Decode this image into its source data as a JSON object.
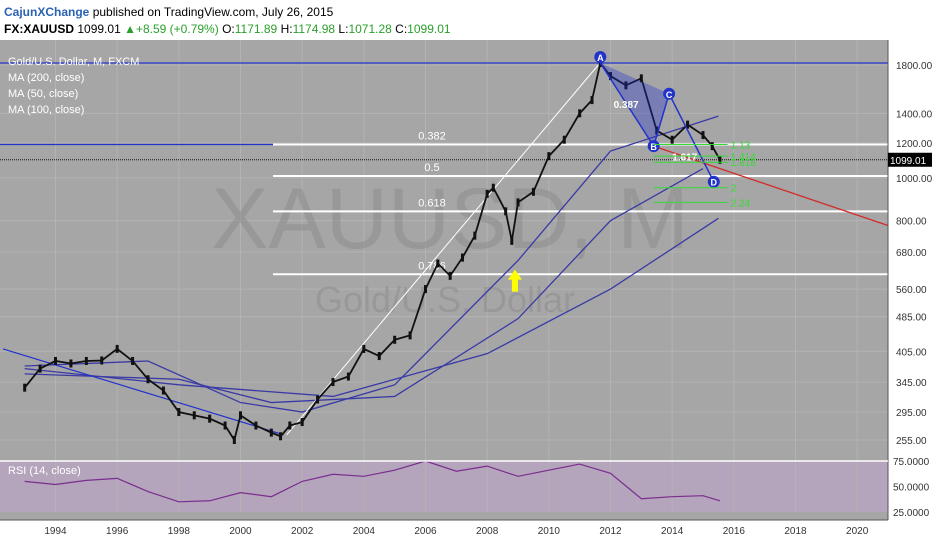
{
  "header": {
    "author": "CajunXChange",
    "published_text": "published on TradingView.com, July 26, 2015",
    "symbol": "FX:XAUUSD",
    "last": "1099.01",
    "change": "+8.59 (+0.79%)",
    "o_label": "O:",
    "o": "1171.89",
    "h_label": "H:",
    "h": "1174.98",
    "l_label": "L:",
    "l": "1071.28",
    "c_label": "C:",
    "c": "1099.01"
  },
  "legend": {
    "title": "Gold/U.S. Dollar, M, FXCM",
    "ma1": "MA (200, close)",
    "ma2": "MA (50, close)",
    "ma3": "MA (100, close)",
    "rsi": "RSI (14, close)"
  },
  "watermark": {
    "symbol": "XAUUSD, M",
    "name": "Gold/U.S. Dollar"
  },
  "colors": {
    "background": "#a6a6a6",
    "rsi_band": "#b4a4bc",
    "rsi_line": "#7b2d8e",
    "ma_line": "#3a3aa6",
    "fib_line": "#ffffff",
    "pattern_blue": "#2233cc",
    "target_green": "#33dd33",
    "trend_red": "#d22b2b",
    "arrow": "#ffff00",
    "price_badge_bg": "#000000"
  },
  "chart_data": {
    "type": "line",
    "title": "Gold/U.S. Dollar, M, FXCM",
    "log_scale": true,
    "grid": true,
    "price_axis_ticks": [
      "1800.00",
      "1400.00",
      "1200.00",
      "1000.00",
      "800.00",
      "680.00",
      "560.00",
      "485.00",
      "405.00",
      "345.00",
      "295.00",
      "255.00"
    ],
    "rsi_axis_ticks": [
      "75.0000",
      "50.0000",
      "25.0000"
    ],
    "x_axis_ticks": [
      "1994",
      "1996",
      "1998",
      "2000",
      "2002",
      "2004",
      "2006",
      "2008",
      "2010",
      "2012",
      "2014",
      "2016",
      "2018",
      "2020"
    ],
    "current_price": "1099.01",
    "series": [
      {
        "name": "Gold/U.S. Dollar",
        "x": [
          1993.0,
          1993.5,
          1994.0,
          1994.5,
          1995.0,
          1995.5,
          1996.0,
          1996.5,
          1997.0,
          1997.5,
          1998.0,
          1998.5,
          1999.0,
          1999.5,
          1999.8,
          2000.0,
          2000.5,
          2001.0,
          2001.3,
          2001.6,
          2002.0,
          2002.5,
          2003.0,
          2003.5,
          2004.0,
          2004.5,
          2005.0,
          2005.5,
          2006.0,
          2006.4,
          2006.8,
          2007.2,
          2007.6,
          2008.0,
          2008.2,
          2008.6,
          2008.8,
          2009.0,
          2009.5,
          2010.0,
          2010.5,
          2011.0,
          2011.4,
          2011.67,
          2012.0,
          2012.5,
          2013.0,
          2013.5,
          2014.0,
          2014.5,
          2015.0,
          2015.3,
          2015.55
        ],
        "y": [
          335,
          370,
          385,
          380,
          385,
          386,
          410,
          385,
          350,
          330,
          295,
          290,
          285,
          275,
          255,
          290,
          275,
          265,
          260,
          275,
          280,
          315,
          345,
          355,
          410,
          395,
          430,
          440,
          560,
          640,
          600,
          660,
          740,
          920,
          950,
          840,
          720,
          880,
          930,
          1120,
          1220,
          1400,
          1500,
          1820,
          1700,
          1620,
          1680,
          1280,
          1220,
          1320,
          1250,
          1180,
          1099
        ]
      }
    ],
    "fib_levels": [
      {
        "label": "0.382",
        "value": 1190
      },
      {
        "label": "0.5",
        "value": 1010
      },
      {
        "label": "0.618",
        "value": 840
      },
      {
        "label": "0.786",
        "value": 605
      }
    ],
    "pattern_points": [
      {
        "label": "A",
        "x": 2011.67,
        "y": 1820
      },
      {
        "label": "B",
        "x": 2013.4,
        "y": 1180
      },
      {
        "label": "C",
        "x": 2013.9,
        "y": 1550
      },
      {
        "label": "D",
        "x": 2015.35,
        "y": 980
      }
    ],
    "pattern_ratios": [
      "0.387",
      "1.617"
    ],
    "targets": [
      {
        "label": "1.13",
        "value": 1190
      },
      {
        "label": "1.414",
        "value": 1120
      },
      {
        "label": "1.618",
        "value": 1085
      },
      {
        "label": "2",
        "value": 950
      },
      {
        "label": "2.24",
        "value": 880
      }
    ],
    "ma": [
      {
        "name": "MA (200, close)",
        "x": [
          1993,
          1998,
          2003,
          2008,
          2012,
          2015.5
        ],
        "y": [
          370,
          340,
          320,
          400,
          560,
          810
        ]
      },
      {
        "name": "MA (50, close)",
        "x": [
          1993,
          1997,
          2000,
          2002,
          2005,
          2009,
          2012,
          2015.5
        ],
        "y": [
          375,
          385,
          310,
          295,
          340,
          650,
          1150,
          1380
        ]
      },
      {
        "name": "MA (100, close)",
        "x": [
          1993,
          1998,
          2001,
          2005,
          2009,
          2012,
          2015
        ],
        "y": [
          360,
          350,
          310,
          320,
          480,
          800,
          1050
        ]
      }
    ],
    "rsi": {
      "name": "RSI (14, close)",
      "x": [
        1993,
        1994,
        1995,
        1996,
        1997,
        1998,
        1999,
        2000,
        2001,
        2002,
        2003,
        2004,
        2005,
        2006,
        2007,
        2008,
        2009,
        2010,
        2011,
        2012,
        2013,
        2014,
        2015,
        2015.55
      ],
      "y": [
        55,
        52,
        56,
        58,
        45,
        35,
        36,
        44,
        40,
        55,
        62,
        60,
        66,
        75,
        65,
        70,
        60,
        66,
        72,
        63,
        38,
        40,
        41,
        36
      ]
    }
  }
}
